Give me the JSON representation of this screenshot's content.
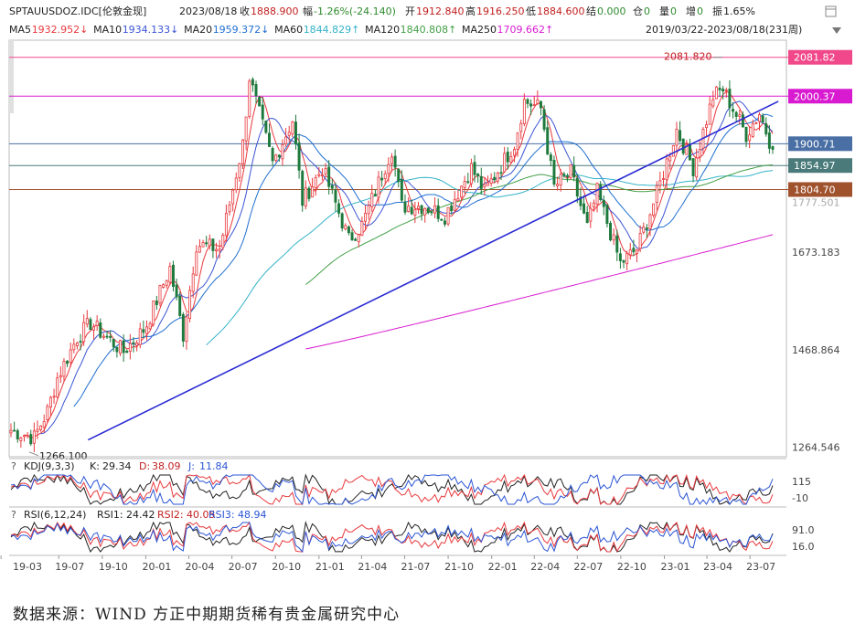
{
  "header": {
    "symbol": "SPTAUUSDOZ.IDC[伦敦金现]",
    "date": "2023/08/18",
    "close_label": "收",
    "close": "1888.900",
    "range_label": "幅",
    "change": "-1.26%(-24.140)",
    "open_label": "开",
    "open": "1912.840",
    "high_label": "高",
    "high": "1916.250",
    "low_label": "低",
    "low": "1884.600",
    "settle_label": "结",
    "settle": "0.000",
    "oi_label": "仓",
    "oi": "0",
    "vol_label": "量",
    "vol": "0",
    "inc_label": "增",
    "inc": "0",
    "amp_label": "振",
    "amp": "1.65%",
    "period": "2019/03/22-2023/08/18(231周)",
    "ma": [
      {
        "name": "MA5",
        "value": "1932.952↓",
        "color": "#e8393d"
      },
      {
        "name": "MA10",
        "value": "1934.133↓",
        "color": "#3b55d4"
      },
      {
        "name": "MA20",
        "value": "1959.372↓",
        "color": "#1f6fd0"
      },
      {
        "name": "MA60",
        "value": "1844.829↑",
        "color": "#33b3c8"
      },
      {
        "name": "MA120",
        "value": "1840.808↑",
        "color": "#43a047"
      },
      {
        "name": "MA250",
        "value": "1709.662↑",
        "color": "#d81bd0"
      }
    ]
  },
  "icons": [
    "window-icon",
    "dropdown-icon"
  ],
  "kdj": {
    "title": "KDJ(9,3,3)",
    "k_label": "K:",
    "k": "29.34",
    "d_label": "D:",
    "d": "38.09",
    "j_label": "J:",
    "j": "11.84",
    "ticks": [
      "115",
      "-10"
    ]
  },
  "rsi": {
    "title": "RSI(6,12,24)",
    "r1_label": "RSI1:",
    "r1": "24.42",
    "r2_label": "RSI2:",
    "r2": "40.05",
    "r3_label": "RSI3:",
    "r3": "48.94",
    "ticks": [
      "91.0",
      "16.0"
    ]
  },
  "source": "数据来源：WIND 方正中期期货稀有贵金属研究中心",
  "chart_data": {
    "type": "candlestick",
    "y_ticks": [
      "1673.183",
      "1468.864",
      "1264.546"
    ],
    "y_range": [
      1260,
      2110
    ],
    "x_ticks": [
      "19-03",
      "19-07",
      "19-10",
      "20-01",
      "20-04",
      "20-07",
      "20-10",
      "21-01",
      "21-04",
      "21-07",
      "21-10",
      "22-01",
      "22-04",
      "22-07",
      "22-10",
      "23-01",
      "23-04",
      "23-07"
    ],
    "hlines": [
      {
        "value": 2081.82,
        "label": "2081.82",
        "color": "#f0488a"
      },
      {
        "value": 2000.37,
        "label": "2000.37",
        "color": "#d81bd0"
      },
      {
        "value": 1900.71,
        "label": "1900.71",
        "color": "#4a6fa5"
      },
      {
        "value": 1854.97,
        "label": "1854.97",
        "color": "#4a7a7a"
      },
      {
        "value": 1804.7,
        "label": "1804.70",
        "color": "#a0522d"
      }
    ],
    "annotations": [
      {
        "text": "2081.820",
        "value": 2081.82
      },
      {
        "text": "1266.100",
        "value": 1266.1
      }
    ],
    "hidden_tick": "1777.501",
    "trendline": {
      "from": [
        "2019-09",
        1280
      ],
      "to": [
        "2023-08",
        1980
      ],
      "color": "#2b2bd4"
    },
    "anchors": [
      [
        "2019-03-22",
        1300
      ],
      [
        "2019-05-10",
        1285
      ],
      [
        "2019-06-07",
        1340
      ],
      [
        "2019-06-28",
        1410
      ],
      [
        "2019-08-09",
        1495
      ],
      [
        "2019-09-06",
        1525
      ],
      [
        "2019-10-04",
        1500
      ],
      [
        "2019-11-15",
        1465
      ],
      [
        "2019-12-31",
        1515
      ],
      [
        "2020-02-21",
        1640
      ],
      [
        "2020-03-20",
        1500
      ],
      [
        "2020-04-17",
        1690
      ],
      [
        "2020-06-05",
        1680
      ],
      [
        "2020-07-24",
        1900
      ],
      [
        "2020-08-07",
        2040
      ],
      [
        "2020-09-25",
        1860
      ],
      [
        "2020-11-06",
        1950
      ],
      [
        "2020-11-27",
        1780
      ],
      [
        "2021-01-08",
        1850
      ],
      [
        "2021-03-05",
        1700
      ],
      [
        "2021-04-02",
        1730
      ],
      [
        "2021-06-04",
        1890
      ],
      [
        "2021-06-25",
        1770
      ],
      [
        "2021-08-13",
        1770
      ],
      [
        "2021-09-24",
        1750
      ],
      [
        "2021-11-19",
        1850
      ],
      [
        "2021-12-17",
        1800
      ],
      [
        "2022-02-18",
        1900
      ],
      [
        "2022-03-11",
        1990
      ],
      [
        "2022-04-15",
        1975
      ],
      [
        "2022-05-13",
        1810
      ],
      [
        "2022-06-17",
        1840
      ],
      [
        "2022-07-22",
        1725
      ],
      [
        "2022-08-12",
        1800
      ],
      [
        "2022-09-30",
        1650
      ],
      [
        "2022-11-04",
        1680
      ],
      [
        "2022-12-16",
        1795
      ],
      [
        "2023-01-27",
        1930
      ],
      [
        "2023-03-03",
        1850
      ],
      [
        "2023-04-14",
        2000
      ],
      [
        "2023-05-05",
        2015
      ],
      [
        "2023-06-23",
        1920
      ],
      [
        "2023-07-21",
        1965
      ],
      [
        "2023-08-18",
        1889
      ]
    ],
    "ma250_visible_from": "2020-12"
  }
}
